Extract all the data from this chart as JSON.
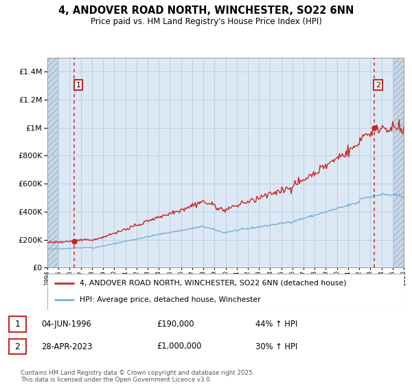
{
  "title_line1": "4, ANDOVER ROAD NORTH, WINCHESTER, SO22 6NN",
  "title_line2": "Price paid vs. HM Land Registry's House Price Index (HPI)",
  "ytick_values": [
    0,
    200000,
    400000,
    600000,
    800000,
    1000000,
    1200000,
    1400000
  ],
  "ylim": [
    0,
    1500000
  ],
  "xlim_start": 1994,
  "xlim_end": 2026,
  "hpi_color": "#7bafd4",
  "price_color": "#cc2222",
  "sale1_year": 1996.42,
  "sale1_price": 190000,
  "sale2_year": 2023.32,
  "sale2_price": 1000000,
  "legend_entry1": "4, ANDOVER ROAD NORTH, WINCHESTER, SO22 6NN (detached house)",
  "legend_entry2": "HPI: Average price, detached house, Winchester",
  "ann1_date": "04-JUN-1996",
  "ann1_price": "£190,000",
  "ann1_hpi": "44% ↑ HPI",
  "ann2_date": "28-APR-2023",
  "ann2_price": "£1,000,000",
  "ann2_hpi": "30% ↑ HPI",
  "footer": "Contains HM Land Registry data © Crown copyright and database right 2025.\nThis data is licensed under the Open Government Licence v3.0.",
  "bg_main": "#dce9f5",
  "bg_hatch": "#c8d8e8",
  "grid_color": "#b8cfe0",
  "hatch_pattern": "////"
}
